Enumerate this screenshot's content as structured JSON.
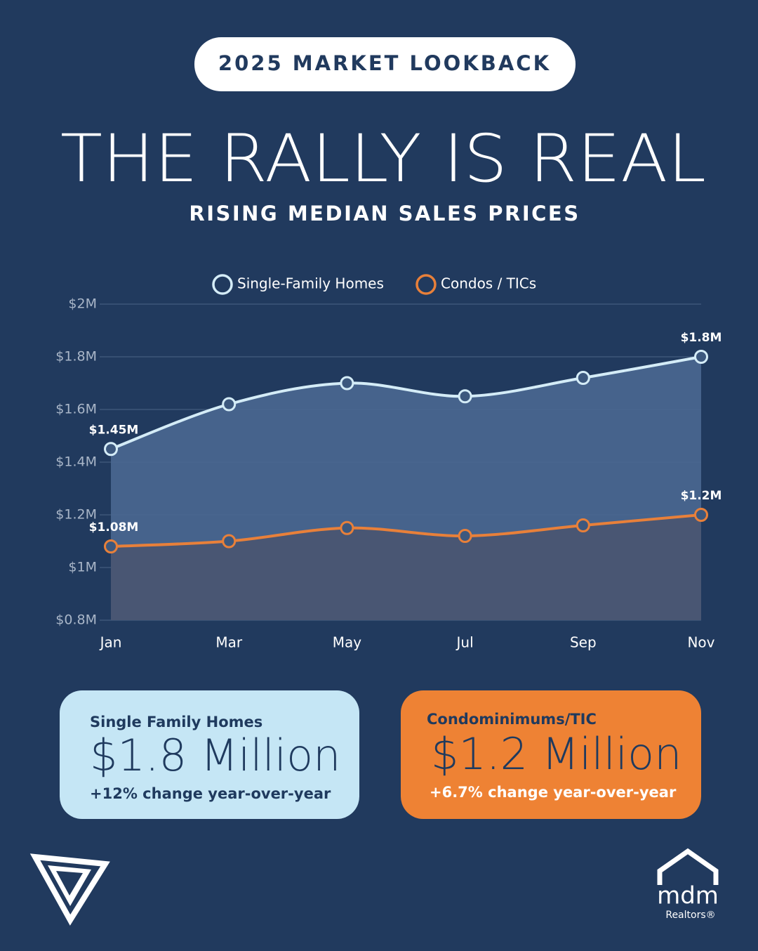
{
  "header": {
    "badge": "2025 MARKET LOOKBACK",
    "title": "THE RALLY IS REAL",
    "subtitle": "RISING MEDIAN SALES PRICES"
  },
  "chart_data": {
    "type": "line",
    "categories": [
      "Jan",
      "Mar",
      "May",
      "Jul",
      "Sep",
      "Nov"
    ],
    "series": [
      {
        "name": "Single-Family Homes",
        "color": "#d4ecf7",
        "area_color": "#4a6790",
        "values": [
          1.45,
          1.62,
          1.7,
          1.65,
          1.72,
          1.8
        ],
        "value_labels": [
          "$1.45M",
          null,
          null,
          null,
          null,
          "$1.8M"
        ]
      },
      {
        "name": "Condos / TICs",
        "color": "#e8803a",
        "area_color": "#4a5571",
        "values": [
          1.08,
          1.1,
          1.15,
          1.12,
          1.16,
          1.2
        ],
        "value_labels": [
          "$1.08M",
          null,
          null,
          null,
          null,
          "$1.2M"
        ]
      }
    ],
    "ylim": [
      0.8,
      2
    ],
    "yticks": [
      {
        "value": 0.8,
        "label": "$0.8M"
      },
      {
        "value": 1,
        "label": "$1M"
      },
      {
        "value": 1.2,
        "label": "$1.2M"
      },
      {
        "value": 1.4,
        "label": "$1.4M"
      },
      {
        "value": 1.6,
        "label": "$1.6M"
      },
      {
        "value": 1.8,
        "label": "$1.8M"
      },
      {
        "value": 2,
        "label": "$2M"
      }
    ],
    "grid": true,
    "legend": "top"
  },
  "cards": [
    {
      "title": "Single Family Homes",
      "value": "$1.8 Million",
      "change": "+12% change year-over-year"
    },
    {
      "title": "Condominimums/TIC",
      "value": "$1.2 Million",
      "change": "+6.7% change year-over-year"
    }
  ],
  "footer": {
    "brand": "mdm",
    "tagline": "Realtors®"
  }
}
